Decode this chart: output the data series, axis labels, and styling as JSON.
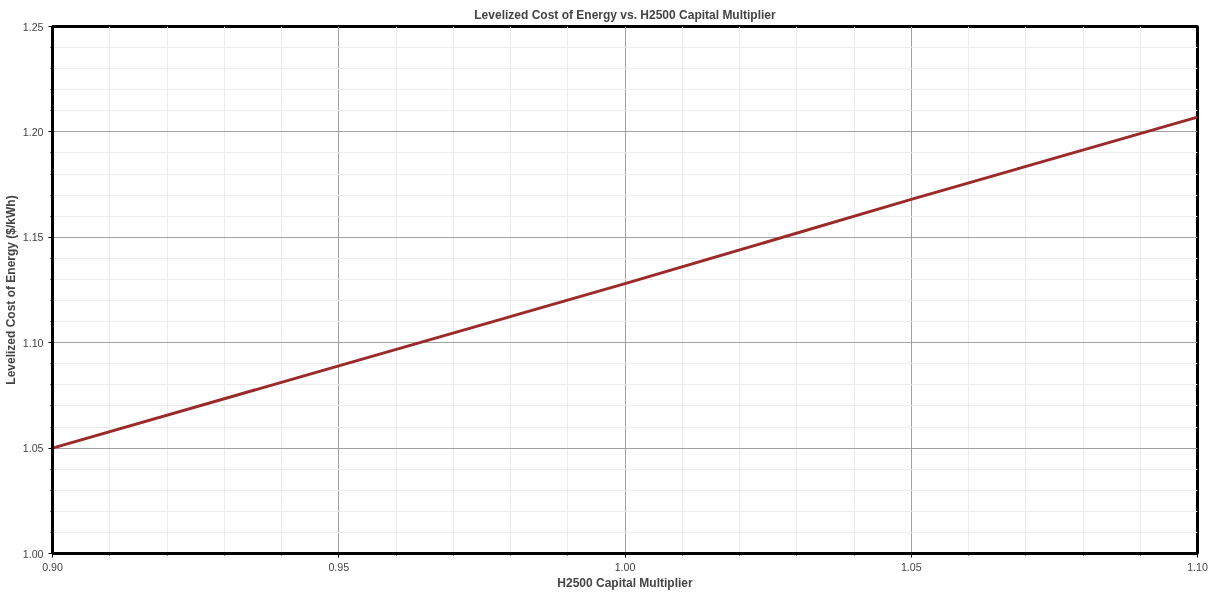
{
  "chart_data": {
    "type": "line",
    "title": "Levelized Cost of Energy vs. H2500 Capital Multiplier",
    "xlabel": "H2500 Capital Multiplier",
    "ylabel": "Levelized Cost of Energy ($/kWh)",
    "x": [
      0.9,
      0.95,
      1.0,
      1.05,
      1.1
    ],
    "series": [
      {
        "color": "#9b2a2a",
        "values": [
          1.05,
          1.089,
          1.128,
          1.168,
          1.207
        ]
      }
    ],
    "xlim": [
      0.9,
      1.1
    ],
    "ylim": [
      1.0,
      1.25
    ],
    "xticks": [
      {
        "value": 0.9,
        "label": "0.90"
      },
      {
        "value": 0.95,
        "label": "0.95"
      },
      {
        "value": 1.0,
        "label": "1.00"
      },
      {
        "value": 1.05,
        "label": "1.05"
      },
      {
        "value": 1.1,
        "label": "1.10"
      }
    ],
    "yticks": [
      {
        "value": 1.0,
        "label": "1.00"
      },
      {
        "value": 1.05,
        "label": "1.05"
      },
      {
        "value": 1.1,
        "label": "1.10"
      },
      {
        "value": 1.15,
        "label": "1.15"
      },
      {
        "value": 1.2,
        "label": "1.20"
      },
      {
        "value": 1.25,
        "label": "1.25"
      }
    ],
    "grid": true,
    "marker": "none",
    "line_style": "solid"
  }
}
